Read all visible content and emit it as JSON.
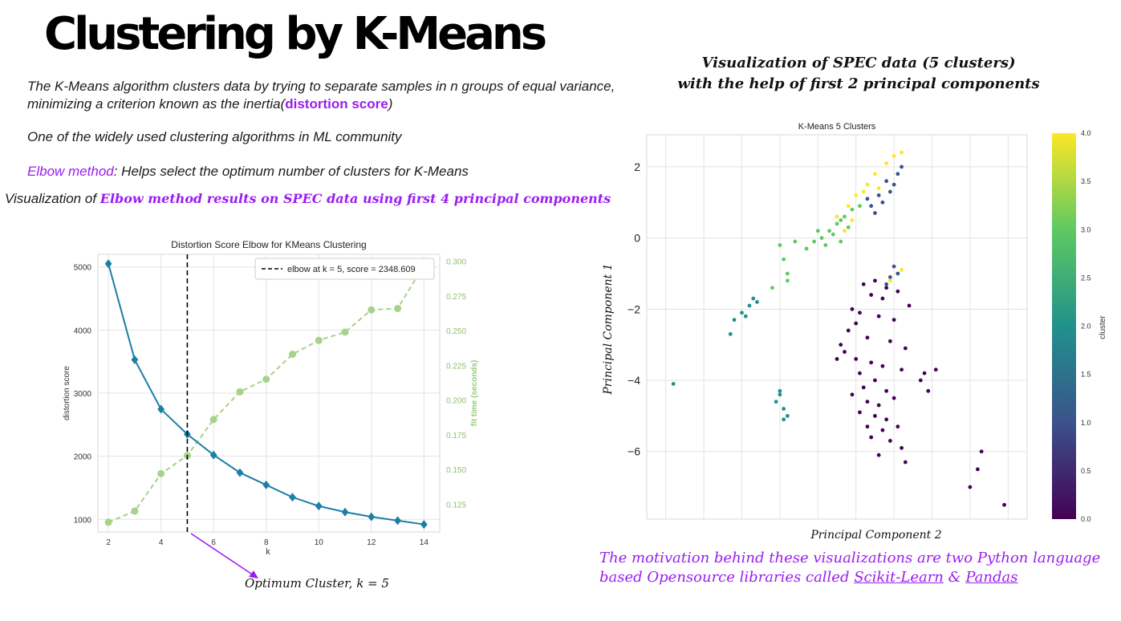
{
  "slide": {
    "title": "Clustering by K-Means",
    "intro_text": "The K-Means algorithm clusters data by trying to separate samples in n groups of equal variance, minimizing a criterion known as the inertia(",
    "intro_highlight": "distortion score",
    "intro_end": ")",
    "line2": "One of the widely used clustering algorithms in ML community",
    "elbow_term": "Elbow method",
    "elbow_desc": ": Helps select the optimum number of clusters for K-Means",
    "viz_left_prefix": "Visualization of ",
    "viz_left_highlight": "Elbow method results on SPEC data using first 4 principal components",
    "viz_right_line1": "Visualization of SPEC data (5 clusters)",
    "viz_right_line2": "with the help of first 2 principal components",
    "optimum_label": "Optimum Cluster, k = 5",
    "motivation_text": "The motivation behind these visualizations are two Python language based Opensource libraries called ",
    "lib1": "Scikit-Learn",
    "amp": " & ",
    "lib2": "Pandas"
  },
  "colors": {
    "accent_purple": "#9b1df0",
    "distortion_line": "#1c7fa6",
    "fit_time_line": "#a6d28c",
    "elbow_line": "#000000"
  },
  "chart_data": [
    {
      "type": "line",
      "title": "Distortion Score Elbow for KMeans Clustering",
      "xlabel": "k",
      "ylabel": "distortion score",
      "y2label": "fit time (seconds)",
      "x": [
        2,
        3,
        4,
        5,
        6,
        7,
        8,
        9,
        10,
        11,
        12,
        13,
        14
      ],
      "xticks": [
        2,
        4,
        6,
        8,
        10,
        12,
        14
      ],
      "yticks": [
        1000,
        2000,
        3000,
        4000,
        5000
      ],
      "y2ticks": [
        "0.125",
        "0.150",
        "0.175",
        "0.200",
        "0.225",
        "0.250",
        "0.275",
        "0.300"
      ],
      "xlim": [
        1.6,
        14.6
      ],
      "ylim": [
        800,
        5200
      ],
      "y2lim": [
        0.105,
        0.305
      ],
      "series": [
        {
          "name": "distortion score",
          "axis": "left",
          "values": [
            5050,
            3530,
            2745,
            2349,
            2020,
            1740,
            1545,
            1350,
            1210,
            1115,
            1040,
            980,
            920
          ]
        },
        {
          "name": "fit time (seconds)",
          "axis": "right",
          "values": [
            0.112,
            0.12,
            0.147,
            0.16,
            0.186,
            0.206,
            0.215,
            0.233,
            0.243,
            0.249,
            0.265,
            0.266,
            0.297
          ]
        }
      ],
      "elbow": {
        "k": 5,
        "legend": "elbow at k = 5, score = 2348.609"
      },
      "legend_position": "top-right",
      "grid": true
    },
    {
      "type": "scatter",
      "title": "K-Means 5 Clusters",
      "xlabel": "Principal Component 2",
      "ylabel": "Principal Component 1",
      "yticks": [
        2,
        0,
        -2,
        -4,
        -6
      ],
      "ylim": [
        -7.9,
        2.9
      ],
      "xlim": [
        -4.5,
        5.5
      ],
      "grid": true,
      "colorbar": {
        "label": "cluster",
        "ticks": [
          "4.0",
          "3.5",
          "3.0",
          "2.5",
          "2.0",
          "1.5",
          "1.0",
          "0.5",
          "0.0"
        ],
        "range": [
          0,
          4
        ]
      },
      "clusters": [
        {
          "cluster": 0,
          "color": "#440154",
          "points": [
            [
              1.2,
              -1.3
            ],
            [
              1.5,
              -1.2
            ],
            [
              1.8,
              -1.4
            ],
            [
              2.1,
              -1.5
            ],
            [
              1.4,
              -1.6
            ],
            [
              1.7,
              -1.7
            ],
            [
              2.4,
              -1.9
            ],
            [
              0.9,
              -2.0
            ],
            [
              1.1,
              -2.1
            ],
            [
              1.6,
              -2.2
            ],
            [
              2.0,
              -2.3
            ],
            [
              0.8,
              -2.6
            ],
            [
              1.3,
              -2.8
            ],
            [
              1.9,
              -2.9
            ],
            [
              2.3,
              -3.1
            ],
            [
              0.7,
              -3.2
            ],
            [
              1.0,
              -3.4
            ],
            [
              1.4,
              -3.5
            ],
            [
              1.7,
              -3.6
            ],
            [
              2.2,
              -3.7
            ],
            [
              0.5,
              -3.4
            ],
            [
              1.1,
              -3.8
            ],
            [
              1.5,
              -4.0
            ],
            [
              2.8,
              -3.8
            ],
            [
              3.1,
              -3.7
            ],
            [
              2.7,
              -4.0
            ],
            [
              1.2,
              -4.2
            ],
            [
              1.8,
              -4.3
            ],
            [
              0.9,
              -4.4
            ],
            [
              1.3,
              -4.6
            ],
            [
              1.6,
              -4.7
            ],
            [
              2.0,
              -4.5
            ],
            [
              1.1,
              -4.9
            ],
            [
              1.5,
              -5.0
            ],
            [
              1.8,
              -5.1
            ],
            [
              1.3,
              -5.3
            ],
            [
              1.7,
              -5.4
            ],
            [
              2.1,
              -5.3
            ],
            [
              1.4,
              -5.6
            ],
            [
              1.9,
              -5.7
            ],
            [
              2.2,
              -5.9
            ],
            [
              1.6,
              -6.1
            ],
            [
              2.3,
              -6.3
            ],
            [
              2.9,
              -4.3
            ],
            [
              0.6,
              -3.0
            ],
            [
              1.0,
              -2.4
            ],
            [
              4.3,
              -6.0
            ],
            [
              4.2,
              -6.5
            ],
            [
              4.0,
              -7.0
            ],
            [
              4.9,
              -7.5
            ]
          ]
        },
        {
          "cluster": 1,
          "color": "#3b528b",
          "points": [
            [
              1.4,
              0.9
            ],
            [
              1.7,
              1.0
            ],
            [
              1.9,
              1.3
            ],
            [
              2.0,
              1.5
            ],
            [
              1.6,
              1.2
            ],
            [
              1.8,
              1.6
            ],
            [
              2.1,
              1.8
            ],
            [
              1.5,
              0.7
            ],
            [
              1.3,
              1.1
            ],
            [
              2.2,
              2.0
            ],
            [
              1.9,
              -1.1
            ],
            [
              2.0,
              -0.8
            ],
            [
              2.1,
              -1.0
            ],
            [
              1.8,
              -1.3
            ]
          ]
        },
        {
          "cluster": 2,
          "color": "#21918c",
          "points": [
            [
              -1.6,
              -1.8
            ],
            [
              -1.8,
              -1.9
            ],
            [
              -2.0,
              -2.1
            ],
            [
              -2.2,
              -2.3
            ],
            [
              -1.9,
              -2.2
            ],
            [
              -1.7,
              -1.7
            ],
            [
              -2.3,
              -2.7
            ],
            [
              -1.0,
              -4.3
            ],
            [
              -1.1,
              -4.6
            ],
            [
              -0.9,
              -4.8
            ],
            [
              -0.8,
              -5.0
            ],
            [
              -0.9,
              -5.1
            ],
            [
              -1.0,
              -4.4
            ],
            [
              -3.8,
              -4.1
            ]
          ]
        },
        {
          "cluster": 3,
          "color": "#5ec962",
          "points": [
            [
              -0.1,
              -0.1
            ],
            [
              0.1,
              0.0
            ],
            [
              0.3,
              0.2
            ],
            [
              0.5,
              0.4
            ],
            [
              0.7,
              0.6
            ],
            [
              0.9,
              0.8
            ],
            [
              0.2,
              -0.2
            ],
            [
              0.4,
              0.1
            ],
            [
              0.6,
              0.5
            ],
            [
              0.8,
              0.3
            ],
            [
              -0.3,
              -0.3
            ],
            [
              -1.0,
              -0.2
            ],
            [
              -0.9,
              -0.6
            ],
            [
              -0.8,
              -1.0
            ],
            [
              -0.8,
              -1.2
            ],
            [
              -0.6,
              -0.1
            ],
            [
              -1.2,
              -1.4
            ],
            [
              0.0,
              0.2
            ],
            [
              0.6,
              -0.1
            ],
            [
              1.1,
              0.9
            ]
          ]
        },
        {
          "cluster": 4,
          "color": "#fde725",
          "points": [
            [
              0.5,
              0.6
            ],
            [
              0.8,
              0.9
            ],
            [
              1.0,
              1.2
            ],
            [
              1.3,
              1.5
            ],
            [
              1.5,
              1.8
            ],
            [
              1.8,
              2.1
            ],
            [
              2.0,
              2.3
            ],
            [
              2.2,
              2.4
            ],
            [
              1.2,
              1.3
            ],
            [
              1.6,
              1.4
            ],
            [
              0.7,
              0.2
            ],
            [
              2.2,
              -0.9
            ],
            [
              1.9,
              -1.2
            ],
            [
              0.9,
              0.5
            ]
          ]
        }
      ]
    }
  ]
}
